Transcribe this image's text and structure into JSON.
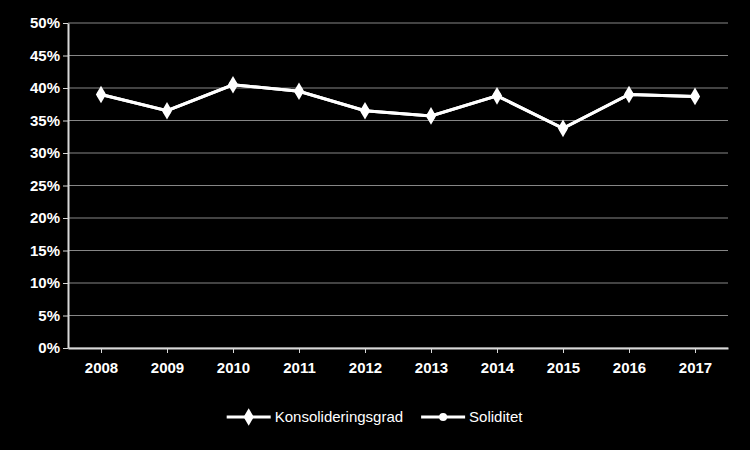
{
  "chart_data": {
    "type": "line",
    "categories": [
      "2008",
      "2009",
      "2010",
      "2011",
      "2012",
      "2013",
      "2014",
      "2015",
      "2016",
      "2017"
    ],
    "series": [
      {
        "name": "Konsolideringsgrad",
        "color": "#ffffff",
        "marker": "diamond",
        "values": [
          39,
          36.5,
          40.5,
          39.5,
          36.5,
          35.7,
          38.8,
          33.8,
          39,
          38.7
        ]
      },
      {
        "name": "Soliditet",
        "color": "#ffffff",
        "marker": "circle",
        "values": [
          39,
          36.5,
          40.5,
          39.5,
          36.5,
          35.7,
          38.8,
          33.8,
          39,
          38.7
        ]
      }
    ],
    "ylim": [
      0,
      50
    ],
    "yticks": [
      {
        "value": 0,
        "label": "0%"
      },
      {
        "value": 5,
        "label": "5%"
      },
      {
        "value": 10,
        "label": "10%"
      },
      {
        "value": 15,
        "label": "15%"
      },
      {
        "value": 20,
        "label": "20%"
      },
      {
        "value": 25,
        "label": "25%"
      },
      {
        "value": 30,
        "label": "30%"
      },
      {
        "value": 35,
        "label": "35%"
      },
      {
        "value": 40,
        "label": "40%"
      },
      {
        "value": 45,
        "label": "45%"
      },
      {
        "value": 50,
        "label": "50%"
      }
    ],
    "grid": true,
    "legend": "bottom"
  }
}
